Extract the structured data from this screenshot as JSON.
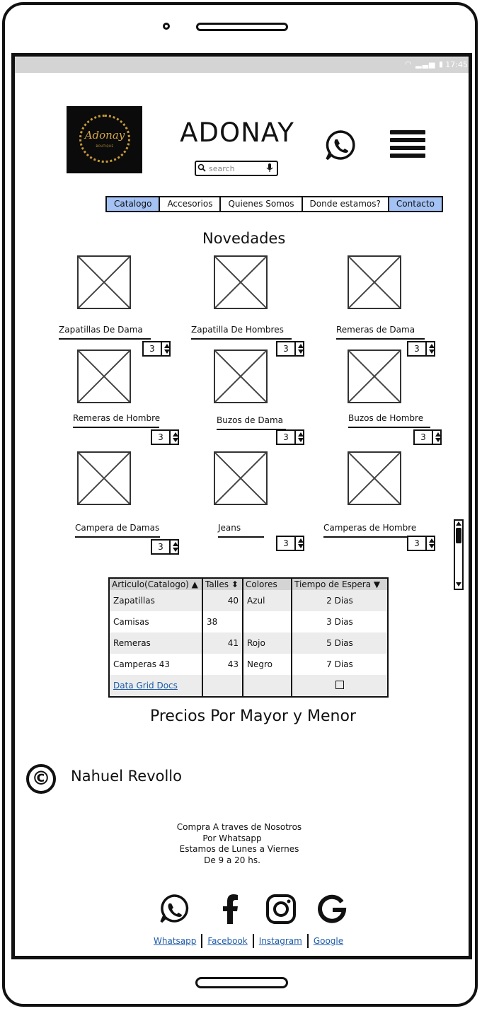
{
  "status_bar": {
    "time": "17:45",
    "icons": "wifi-icon signal-icon battery-icon"
  },
  "header": {
    "logo_text": "Adonay",
    "logo_subtext": "BOUTIQUE",
    "brand": "ADONAY",
    "search_placeholder": "search",
    "icons": [
      "search-icon",
      "microphone-icon",
      "whatsapp-icon",
      "hamburger-menu-icon"
    ]
  },
  "nav": {
    "tabs": [
      {
        "label": "Catalogo",
        "active": true
      },
      {
        "label": "Accesorios",
        "active": false
      },
      {
        "label": "Quienes Somos",
        "active": false
      },
      {
        "label": "Donde estamos?",
        "active": false
      },
      {
        "label": "Contacto",
        "active": true
      }
    ]
  },
  "novedades": {
    "title": "Novedades",
    "products": [
      {
        "label": "Zapatillas De Dama",
        "qty": "3"
      },
      {
        "label": "Zapatilla De Hombres",
        "qty": "3"
      },
      {
        "label": "Remeras de Dama",
        "qty": "3"
      },
      {
        "label": "Remeras de Hombre",
        "qty": "3"
      },
      {
        "label": "Buzos de Dama",
        "qty": "3"
      },
      {
        "label": "Buzos de Hombre",
        "qty": "3"
      },
      {
        "label": "Campera de Damas",
        "qty": "3"
      },
      {
        "label": "Jeans",
        "qty": "3"
      },
      {
        "label": "Camperas de Hombre",
        "qty": "3"
      }
    ]
  },
  "grid": {
    "columns": [
      "Articulo(Catalogo) ▲",
      "Talles ⬍",
      "Colores",
      "Tiempo de Espera ▼"
    ],
    "rows": [
      [
        "Zapatillas",
        "40",
        "Azul",
        "2 Dias"
      ],
      [
        "Camisas",
        "38",
        "",
        "3 Dias"
      ],
      [
        "Remeras",
        "41",
        "Rojo",
        "5 Dias"
      ],
      [
        "Camperas 43",
        "43",
        "Negro",
        "7 Dias"
      ]
    ],
    "footer_link": "Data Grid Docs"
  },
  "precios_title": "Precios Por Mayor y Menor",
  "author": {
    "symbol": "©",
    "name": "Nahuel Revollo"
  },
  "footer": {
    "lines": [
      "Compra A traves de Nosotros",
      "Por Whatsapp",
      "Estamos de Lunes a Viernes",
      "De 9 a 20 hs."
    ],
    "social_icons": [
      "whatsapp-icon",
      "facebook-icon",
      "instagram-icon",
      "google-icon"
    ],
    "links": [
      "Whatsapp",
      "Facebook",
      "Instagram",
      "Google"
    ]
  }
}
